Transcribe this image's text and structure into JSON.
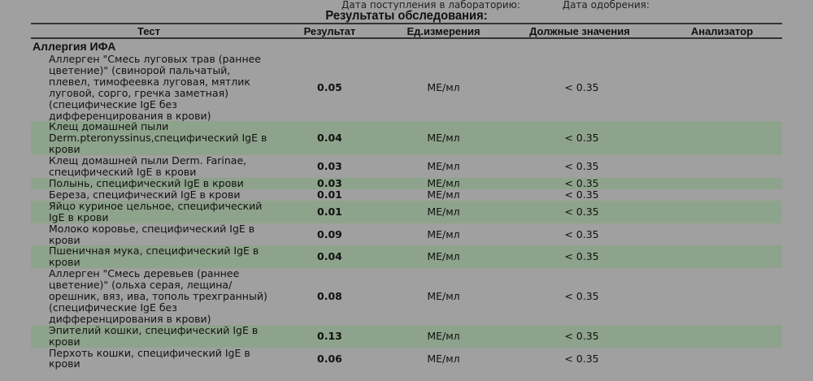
{
  "header": {
    "received_label": "Дата поступления в лабораторию:",
    "approved_label": "Дата одобрения:",
    "title": "Результаты обследования:"
  },
  "columns": [
    "Тест",
    "Результат",
    "Ед.измерения",
    "Должные значения",
    "Анализатор"
  ],
  "section": "Аллергия ИФА",
  "rows": [
    {
      "test": "Аллерген \"Смесь луговых трав (раннее цветение)\" (свинорой пальчатый, плевел, тимофеевка луговая, мятлик луговой, сорго, гречка заметная) (специфические IgE без дифференцирования в крови)",
      "result": "0.05",
      "unit": "МЕ/мл",
      "norm": "< 0.35",
      "highlight": false
    },
    {
      "test": "Клещ домашней пыли Derm.pteronyssinus,специфический IgE в крови",
      "result": "0.04",
      "unit": "МЕ/мл",
      "norm": "< 0.35",
      "highlight": true
    },
    {
      "test": "Клещ домашней пыли Derm. Farinae, специфический IgE в крови",
      "result": "0.03",
      "unit": "МЕ/мл",
      "norm": "< 0.35",
      "highlight": false
    },
    {
      "test": "Полынь, специфический IgE в крови",
      "result": "0.03",
      "unit": "МЕ/мл",
      "norm": "< 0.35",
      "highlight": true
    },
    {
      "test": "Береза, специфический IgE в крови",
      "result": "0.01",
      "unit": "МЕ/мл",
      "norm": "< 0.35",
      "highlight": false
    },
    {
      "test": "Яйцо куриное цельное, специфический IgE в крови",
      "result": "0.01",
      "unit": "МЕ/мл",
      "norm": "< 0.35",
      "highlight": true
    },
    {
      "test": "Молоко коровье, специфический IgE в крови",
      "result": "0.09",
      "unit": "МЕ/мл",
      "norm": "< 0.35",
      "highlight": false
    },
    {
      "test": "Пшеничная мука, специфический IgE в крови",
      "result": "0.04",
      "unit": "МЕ/мл",
      "norm": "< 0.35",
      "highlight": true
    },
    {
      "test": "Аллерген \"Смесь деревьев (раннее цветение)\" (ольха серая, лещина/орешник, вяз, ива, тополь трехгранный) (специфические IgE без дифференцирования в крови)",
      "result": "0.08",
      "unit": "МЕ/мл",
      "norm": "< 0.35",
      "highlight": false
    },
    {
      "test": "Эпителий кошки, специфический IgE в крови",
      "result": "0.13",
      "unit": "МЕ/мл",
      "norm": "< 0.35",
      "highlight": true
    },
    {
      "test": "Перхоть кошки, специфический IgE в крови",
      "result": "0.06",
      "unit": "МЕ/мл",
      "norm": "< 0.35",
      "highlight": false
    }
  ],
  "colors": {
    "background": "#a0a0a0",
    "highlight_row": "#8ea38b"
  }
}
